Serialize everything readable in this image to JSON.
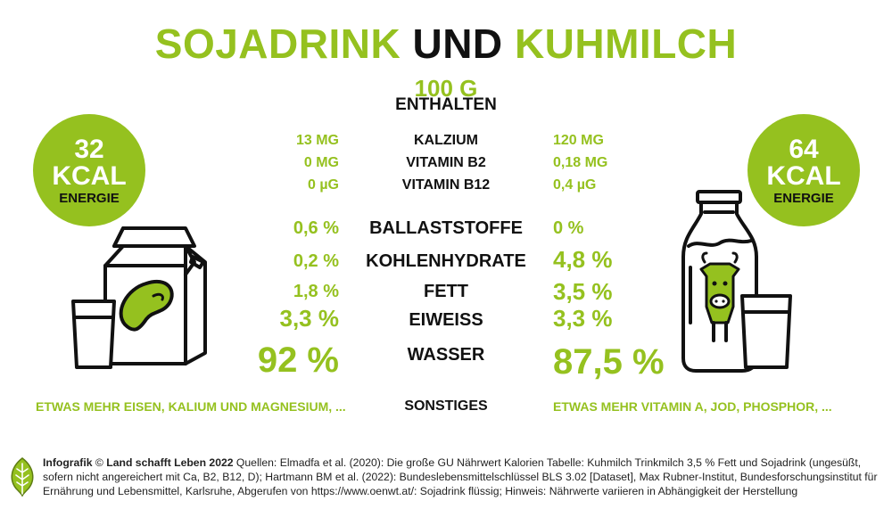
{
  "title": {
    "part1": "SOJADRINK",
    "part2": "UND",
    "part3": "KUHMILCH"
  },
  "header": {
    "amount": "100 G",
    "label": "ENTHALTEN"
  },
  "left": {
    "energy": {
      "value": "32",
      "unit": "KCAL",
      "label": "ENERGIE"
    },
    "misc": "ETWAS MEHR EISEN, KALIUM UND MAGNESIUM, ..."
  },
  "right": {
    "energy": {
      "value": "64",
      "unit": "KCAL",
      "label": "ENERGIE"
    },
    "misc": "ETWAS MEHR VITAMIN A, JOD, PHOSPHOR, ..."
  },
  "rows": [
    {
      "left": "13 MG",
      "name": "KALZIUM",
      "right": "120 MG"
    },
    {
      "left": "0 MG",
      "name": "VITAMIN B2",
      "right": "0,18 MG"
    },
    {
      "left": "0 µG",
      "name": "VITAMIN B12",
      "right": "0,4 µG"
    },
    {
      "left": "0,6 %",
      "name": "BALLASTSTOFFE",
      "right": "0 %"
    },
    {
      "left": "0,2 %",
      "name": "KOHLENHYDRATE",
      "right": "4,8 %"
    },
    {
      "left": "1,8 %",
      "name": "FETT",
      "right": "3,5 %"
    },
    {
      "left": "3,3 %",
      "name": "EIWEISS",
      "right": "3,3 %"
    },
    {
      "left": "92 %",
      "name": "WASSER",
      "right": "87,5 %"
    }
  ],
  "misc_label": "SONSTIGES",
  "footer": {
    "bold1": "Infografik",
    "copyright": "©",
    "bold2": "Land schafft Leben 2022",
    "text": "Quellen: Elmadfa et al. (2020): Die große GU Nährwert Kalorien Tabelle: Kuhmilch Trinkmilch 3,5 % Fett und Sojadrink (ungesüßt, sofern nicht angereichert mit Ca, B2, B12, D); Hartmann BM et al. (2022): Bundeslebensmittelschlüssel BLS 3.02 [Dataset], Max Rubner-Institut, Bundesforschungsinstitut für Ernährung und Lebensmittel, Karlsruhe, Abgerufen von https://www.oenwt.at/: Sojadrink flüssig; Hinweis: Nährwerte variieren in Abhängigkeit der Herstellung"
  },
  "colors": {
    "accent": "#95c11f",
    "text": "#111111"
  },
  "icons": [
    "soy-carton-icon",
    "glass-icon",
    "milk-bottle-icon",
    "cow-icon",
    "leaf-logo-icon"
  ]
}
